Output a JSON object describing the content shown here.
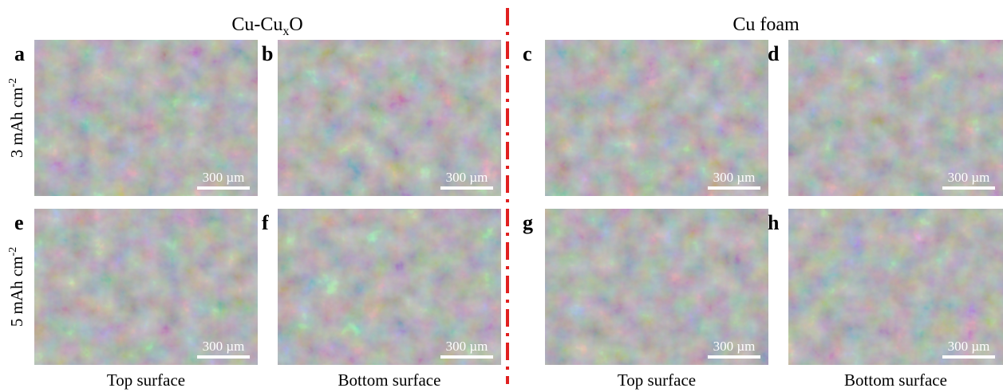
{
  "groups": [
    {
      "title_main": "Cu-Cu",
      "title_sub": "x",
      "title_end": "O"
    },
    {
      "title_main": "Cu foam"
    }
  ],
  "rows": [
    {
      "label": "3 mAh cm",
      "label_sup": "-2"
    },
    {
      "label": "5 mAh cm",
      "label_sup": "-2"
    }
  ],
  "panels": [
    {
      "letter": "a",
      "scale_bar": "300 µm"
    },
    {
      "letter": "b",
      "scale_bar": "300 µm"
    },
    {
      "letter": "c",
      "scale_bar": "300 µm"
    },
    {
      "letter": "d",
      "scale_bar": "300 µm"
    },
    {
      "letter": "e",
      "scale_bar": "300 µm"
    },
    {
      "letter": "f",
      "scale_bar": "300 µm"
    },
    {
      "letter": "g",
      "scale_bar": "300 µm"
    },
    {
      "letter": "h",
      "scale_bar": "300 µm"
    }
  ],
  "columns": [
    "Top surface",
    "Bottom surface",
    "Top surface",
    "Bottom surface"
  ]
}
